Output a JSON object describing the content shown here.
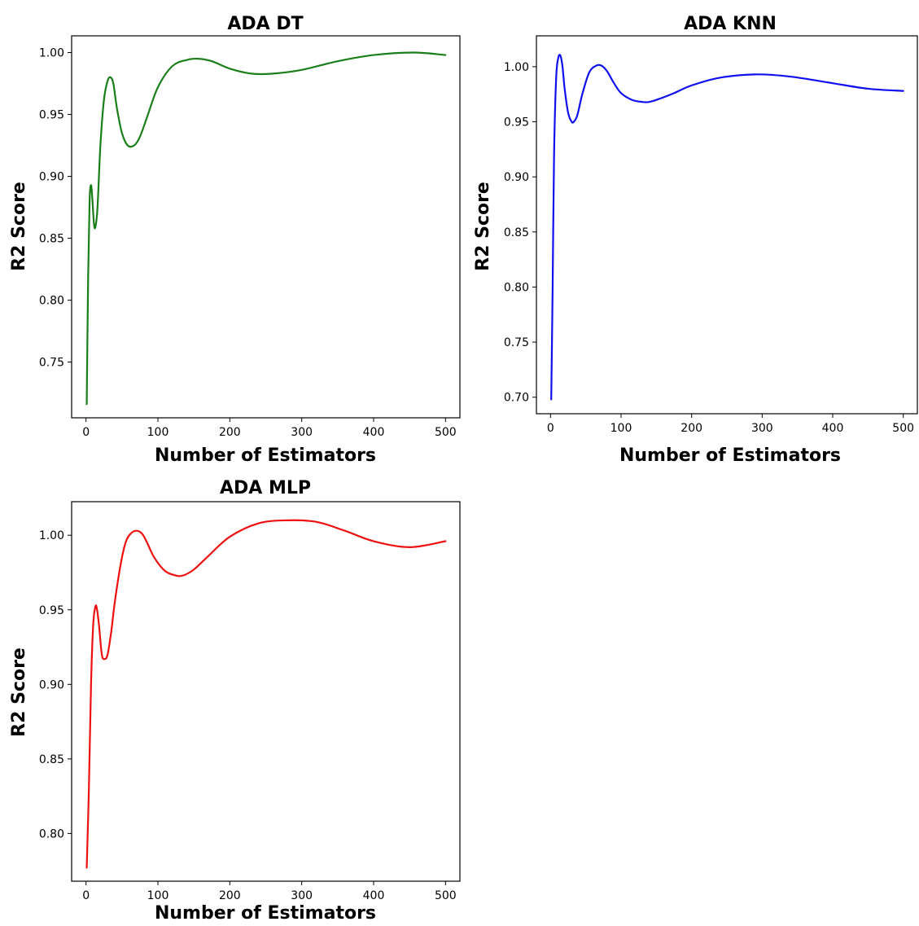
{
  "chart_data": [
    {
      "type": "line",
      "title": "ADA DT",
      "xlabel": "Number of Estimators",
      "ylabel": "R2 Score",
      "xlim": [
        -20,
        520
      ],
      "ylim": [
        0.705,
        1.0135
      ],
      "xticks": [
        0,
        100,
        200,
        300,
        400,
        500
      ],
      "yticks": [
        0.75,
        0.8,
        0.85,
        0.9,
        0.95,
        1.0
      ],
      "grid": false,
      "color": "#1a7f1a",
      "series": [
        {
          "x": [
            1,
            3,
            5,
            7,
            9,
            11,
            13,
            16,
            20,
            25,
            30,
            34,
            38,
            43,
            50,
            58,
            67,
            75,
            85,
            100,
            120,
            140,
            156,
            175,
            200,
            230,
            260,
            300,
            350,
            400,
            455,
            500
          ],
          "values": [
            0.716,
            0.82,
            0.88,
            0.893,
            0.88,
            0.862,
            0.859,
            0.875,
            0.925,
            0.962,
            0.977,
            0.98,
            0.975,
            0.955,
            0.935,
            0.925,
            0.925,
            0.932,
            0.948,
            0.972,
            0.989,
            0.994,
            0.995,
            0.993,
            0.987,
            0.983,
            0.983,
            0.986,
            0.993,
            0.998,
            1.0,
            0.998
          ]
        }
      ]
    },
    {
      "type": "line",
      "title": "ADA KNN",
      "xlabel": "Number of Estimators",
      "ylabel": "R2 Score",
      "xlim": [
        -20,
        520
      ],
      "ylim": [
        0.685,
        1.028
      ],
      "xticks": [
        0,
        100,
        200,
        300,
        400,
        500
      ],
      "yticks": [
        0.7,
        0.75,
        0.8,
        0.85,
        0.9,
        0.95,
        1.0
      ],
      "grid": false,
      "color": "#1010ee",
      "series": [
        {
          "x": [
            1,
            3,
            5,
            8,
            11,
            14,
            17,
            20,
            25,
            30,
            33,
            38,
            45,
            55,
            65,
            72,
            80,
            90,
            100,
            115,
            130,
            140,
            155,
            175,
            200,
            240,
            290,
            340,
            400,
            450,
            500
          ],
          "values": [
            0.698,
            0.8,
            0.92,
            0.99,
            1.008,
            1.01,
            1.0,
            0.98,
            0.958,
            0.95,
            0.95,
            0.956,
            0.975,
            0.995,
            1.001,
            1.001,
            0.996,
            0.985,
            0.976,
            0.97,
            0.968,
            0.968,
            0.971,
            0.976,
            0.983,
            0.99,
            0.993,
            0.991,
            0.985,
            0.98,
            0.978
          ]
        }
      ]
    },
    {
      "type": "line",
      "title": "ADA MLP",
      "xlabel": "Number of Estimators",
      "ylabel": "R2 Score",
      "xlim": [
        -20,
        520
      ],
      "ylim": [
        0.768,
        1.0225
      ],
      "xticks": [
        0,
        100,
        200,
        300,
        400,
        500
      ],
      "yticks": [
        0.8,
        0.85,
        0.9,
        0.95,
        1.0
      ],
      "grid": false,
      "color": "#ee1010",
      "series": [
        {
          "x": [
            1,
            4,
            7,
            10,
            13,
            15,
            18,
            22,
            26,
            30,
            35,
            40,
            48,
            55,
            62,
            70,
            78,
            85,
            95,
            110,
            125,
            135,
            150,
            170,
            200,
            240,
            280,
            320,
            360,
            400,
            450,
            500
          ],
          "values": [
            0.777,
            0.83,
            0.9,
            0.94,
            0.952,
            0.951,
            0.94,
            0.92,
            0.917,
            0.92,
            0.935,
            0.955,
            0.98,
            0.995,
            1.001,
            1.003,
            1.001,
            0.995,
            0.985,
            0.976,
            0.973,
            0.973,
            0.977,
            0.986,
            0.999,
            1.008,
            1.01,
            1.009,
            1.003,
            0.996,
            0.992,
            0.996
          ]
        }
      ]
    }
  ]
}
